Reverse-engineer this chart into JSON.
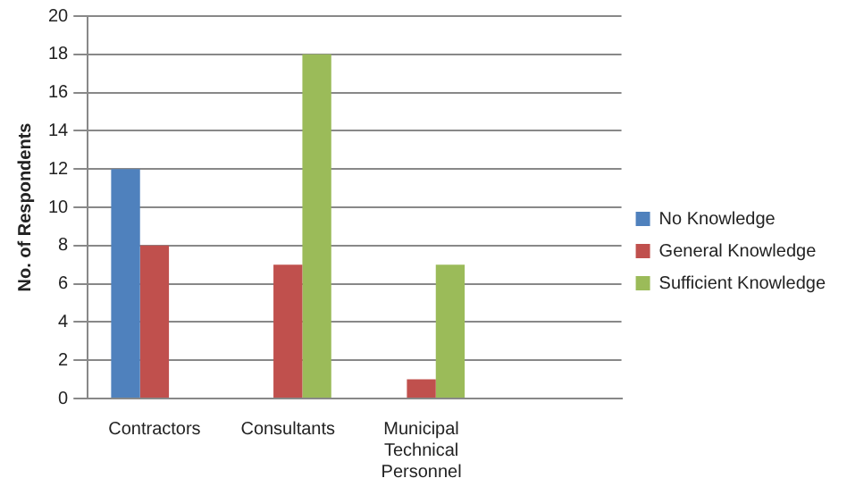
{
  "chart_data": {
    "type": "bar",
    "ylabel": "No. of Respondents",
    "categories": [
      "Contractors",
      "Consultants",
      "Municipal Technical Personnel",
      null
    ],
    "series": [
      {
        "name": "No Knowledge",
        "color": "#4f81bd",
        "values": [
          12,
          0,
          0,
          null
        ]
      },
      {
        "name": "General Knowledge",
        "color": "#c0504d",
        "values": [
          8,
          7,
          1,
          null
        ]
      },
      {
        "name": "Sufficient Knowledge",
        "color": "#9bbb59",
        "values": [
          0,
          18,
          7,
          null
        ]
      }
    ],
    "ylim": [
      0,
      20
    ],
    "yticks": [
      0,
      2,
      4,
      6,
      8,
      10,
      12,
      14,
      16,
      18,
      20
    ],
    "grid": "y",
    "legend": "right"
  }
}
